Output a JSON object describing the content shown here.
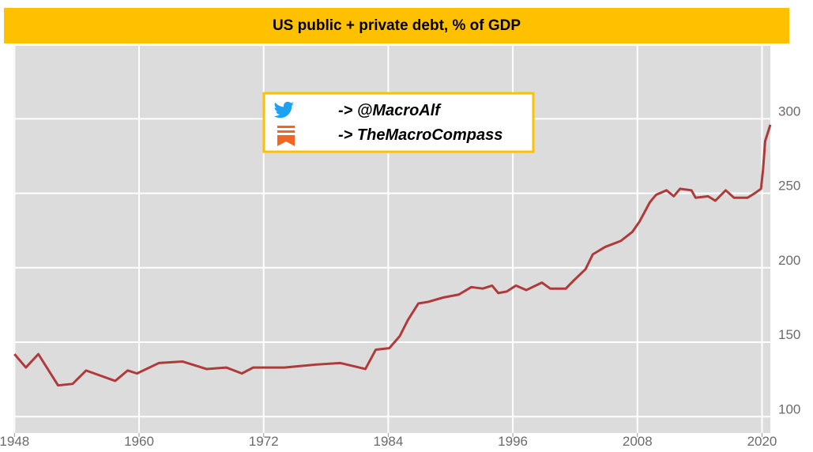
{
  "chart_data": {
    "type": "line",
    "title": "US public + private debt, % of GDP",
    "annotations": [
      "-> @MacroAlf",
      "-> TheMacroCompass"
    ],
    "x": [
      1948.0,
      1949.1,
      1950.3,
      1952.2,
      1953.6,
      1954.9,
      1957.7,
      1958.9,
      1959.8,
      1961.9,
      1964.2,
      1966.5,
      1968.4,
      1969.9,
      1971.0,
      1974.0,
      1977.1,
      1979.4,
      1981.8,
      1982.8,
      1984.1,
      1985.1,
      1985.9,
      1986.9,
      1987.8,
      1989.3,
      1990.8,
      1992.0,
      1993.1,
      1994.0,
      1994.6,
      1995.4,
      1996.3,
      1997.3,
      1998.8,
      1999.6,
      2001.1,
      2001.8,
      2003.0,
      2003.7,
      2004.9,
      2006.4,
      2007.5,
      2008.2,
      2009.2,
      2009.8,
      2010.8,
      2011.5,
      2012.1,
      2013.2,
      2013.6,
      2014.8,
      2015.5,
      2016.5,
      2017.3,
      2018.6,
      2019.3,
      2019.9,
      2020.1,
      2020.3,
      2020.8
    ],
    "series": [
      {
        "name": "US public + private debt, % of GDP",
        "color": "#b03a3a",
        "values": [
          142,
          133,
          142,
          121,
          122,
          131,
          124,
          131,
          129,
          136,
          137,
          132,
          133,
          129,
          133,
          133,
          135,
          136,
          132,
          145,
          146,
          154,
          165,
          176,
          177,
          180,
          182,
          187,
          186,
          188,
          183,
          184,
          188,
          185,
          190,
          186,
          186,
          191,
          199,
          209,
          214,
          218,
          224,
          231,
          244,
          249,
          252,
          248,
          253,
          252,
          247,
          248,
          245,
          252,
          247,
          247,
          250,
          253,
          266,
          285,
          296
        ]
      }
    ],
    "xlim": [
      1947.9,
      2020.8
    ],
    "xticks": [
      {
        "value": 1948,
        "label": "1948"
      },
      1960,
      1972,
      1984,
      1996,
      2008,
      2020
    ],
    "ylim": [
      89,
      349
    ],
    "yticks": [
      100,
      150,
      200,
      250,
      300
    ],
    "grid": true
  }
}
